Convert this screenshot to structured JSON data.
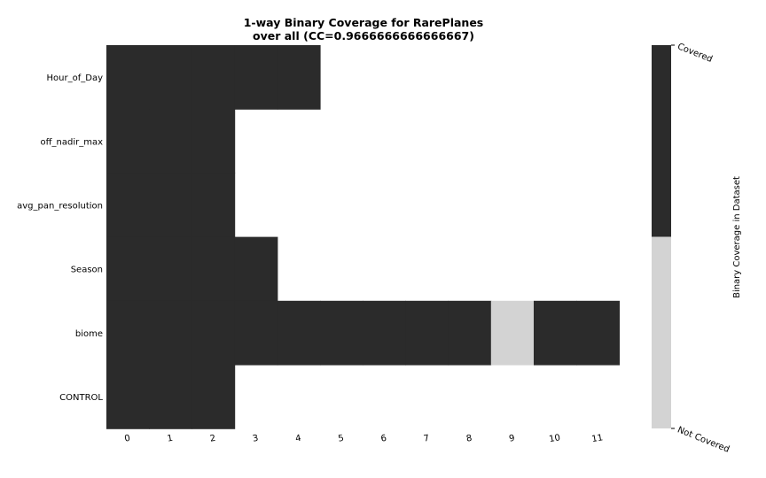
{
  "chart_data": {
    "type": "heatmap",
    "title_lines": [
      "1-way Binary Coverage for RarePlanes",
      "over all (CC=0.9666666666666667)"
    ],
    "rows": [
      "Hour_of_Day",
      "off_nadir_max",
      "avg_pan_resolution",
      "Season",
      "biome",
      "CONTROL"
    ],
    "columns": [
      "0",
      "1",
      "2",
      "3",
      "4",
      "5",
      "6",
      "7",
      "8",
      "9",
      "10",
      "11"
    ],
    "values": [
      [
        1,
        1,
        1,
        1,
        1,
        null,
        null,
        null,
        null,
        null,
        null,
        null
      ],
      [
        1,
        1,
        1,
        null,
        null,
        null,
        null,
        null,
        null,
        null,
        null,
        null
      ],
      [
        1,
        1,
        1,
        null,
        null,
        null,
        null,
        null,
        null,
        null,
        null,
        null
      ],
      [
        1,
        1,
        1,
        1,
        null,
        null,
        null,
        null,
        null,
        null,
        null,
        null
      ],
      [
        1,
        1,
        1,
        1,
        1,
        1,
        1,
        1,
        1,
        0,
        1,
        1
      ],
      [
        1,
        1,
        1,
        null,
        null,
        null,
        null,
        null,
        null,
        null,
        null,
        null
      ]
    ],
    "colorbar": {
      "label": "Binary Coverage in Dataset",
      "ticks": [
        "Covered",
        "Not Covered"
      ],
      "colors": {
        "covered": "#2b2b2b",
        "not_covered": "#d3d3d3"
      }
    }
  }
}
